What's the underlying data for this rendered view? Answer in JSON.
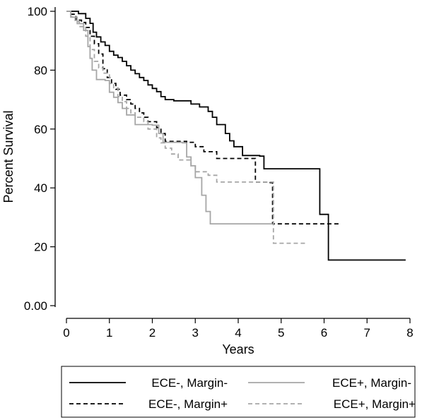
{
  "chart_data": {
    "type": "line",
    "step": true,
    "xlabel": "Years",
    "ylabel": "Percent Survival",
    "xlim": [
      0,
      8
    ],
    "ylim": [
      0,
      100
    ],
    "x_ticks": [
      0,
      1,
      2,
      3,
      4,
      5,
      6,
      7,
      8
    ],
    "x_tick_labels": [
      "0",
      "1",
      "2",
      "3",
      "4",
      "5",
      "6",
      "7",
      "8"
    ],
    "y_ticks": [
      0,
      20,
      40,
      60,
      80,
      100
    ],
    "y_tick_labels": [
      "0.00",
      "20",
      "40",
      "60",
      "80",
      "100"
    ],
    "grid": false,
    "legend_position": "bottom",
    "series": [
      {
        "name": "ECE-, Margin-",
        "color": "#000000",
        "dash": "solid",
        "points": [
          [
            0,
            100
          ],
          [
            0.2,
            100
          ],
          [
            0.28,
            99.2
          ],
          [
            0.38,
            99.2
          ],
          [
            0.45,
            97.6
          ],
          [
            0.55,
            95.9
          ],
          [
            0.62,
            92.9
          ],
          [
            0.7,
            91.3
          ],
          [
            0.8,
            89.6
          ],
          [
            0.9,
            88.4
          ],
          [
            1.0,
            86.4
          ],
          [
            1.1,
            85.1
          ],
          [
            1.2,
            84.3
          ],
          [
            1.3,
            83.0
          ],
          [
            1.4,
            81.5
          ],
          [
            1.5,
            80.0
          ],
          [
            1.6,
            78.8
          ],
          [
            1.7,
            77.5
          ],
          [
            1.8,
            76.5
          ],
          [
            1.9,
            75.0
          ],
          [
            2.0,
            73.8
          ],
          [
            2.1,
            72.7
          ],
          [
            2.2,
            71.0
          ],
          [
            2.3,
            70.0
          ],
          [
            2.5,
            69.6
          ],
          [
            2.9,
            68.5
          ],
          [
            3.1,
            67.5
          ],
          [
            3.3,
            66.0
          ],
          [
            3.4,
            64.0
          ],
          [
            3.5,
            61.5
          ],
          [
            3.7,
            58.5
          ],
          [
            3.8,
            56.0
          ],
          [
            3.9,
            54.0
          ],
          [
            4.1,
            51.0
          ],
          [
            4.5,
            50.8
          ],
          [
            4.6,
            46.5
          ],
          [
            5.9,
            31.0
          ],
          [
            6.1,
            15.5
          ],
          [
            7.9,
            15.5
          ]
        ]
      },
      {
        "name": "ECE-, Margin+",
        "color": "#000000",
        "dash": "dashed",
        "points": [
          [
            0,
            100
          ],
          [
            0.1,
            99
          ],
          [
            0.22,
            97
          ],
          [
            0.35,
            96.2
          ],
          [
            0.45,
            94.5
          ],
          [
            0.55,
            91.5
          ],
          [
            0.65,
            89
          ],
          [
            0.75,
            85.5
          ],
          [
            0.85,
            80.5
          ],
          [
            0.95,
            77.5
          ],
          [
            1.05,
            75.5
          ],
          [
            1.15,
            73.5
          ],
          [
            1.25,
            71.5
          ],
          [
            1.4,
            70.0
          ],
          [
            1.5,
            68.5
          ],
          [
            1.6,
            67.0
          ],
          [
            1.7,
            65.5
          ],
          [
            1.8,
            64.0
          ],
          [
            1.9,
            62.5
          ],
          [
            2.1,
            60.5
          ],
          [
            2.2,
            58.5
          ],
          [
            2.3,
            55.8
          ],
          [
            2.8,
            55.5
          ],
          [
            3.0,
            54.0
          ],
          [
            3.2,
            52.3
          ],
          [
            3.5,
            50.0
          ],
          [
            4.4,
            42.0
          ],
          [
            4.7,
            41.8
          ],
          [
            4.8,
            27.8
          ],
          [
            6.4,
            27.8
          ]
        ]
      },
      {
        "name": "ECE+, Margin-",
        "color": "#a6a6a6",
        "dash": "solid",
        "points": [
          [
            0,
            100
          ],
          [
            0.1,
            98
          ],
          [
            0.25,
            95.8
          ],
          [
            0.4,
            93.5
          ],
          [
            0.5,
            88
          ],
          [
            0.55,
            84
          ],
          [
            0.6,
            80
          ],
          [
            0.7,
            76.8
          ],
          [
            0.9,
            76.5
          ],
          [
            1.0,
            72.5
          ],
          [
            1.1,
            70.8
          ],
          [
            1.2,
            69
          ],
          [
            1.3,
            67
          ],
          [
            1.4,
            64.8
          ],
          [
            1.6,
            61.5
          ],
          [
            2.0,
            61.3
          ],
          [
            2.15,
            58.5
          ],
          [
            2.25,
            55.5
          ],
          [
            2.7,
            55.3
          ],
          [
            2.8,
            50.5
          ],
          [
            2.9,
            47.5
          ],
          [
            3.0,
            43.5
          ],
          [
            3.15,
            37.5
          ],
          [
            3.25,
            32
          ],
          [
            3.35,
            27.8
          ],
          [
            4.8,
            27.8
          ]
        ]
      },
      {
        "name": "ECE+, Margin+",
        "color": "#a6a6a6",
        "dash": "dashed",
        "points": [
          [
            0,
            100
          ],
          [
            0.1,
            98.2
          ],
          [
            0.2,
            96.5
          ],
          [
            0.3,
            94.8
          ],
          [
            0.45,
            91.5
          ],
          [
            0.55,
            87
          ],
          [
            0.65,
            83
          ],
          [
            0.75,
            80.8
          ],
          [
            0.85,
            79
          ],
          [
            1.0,
            75.5
          ],
          [
            1.1,
            74.0
          ],
          [
            1.2,
            71.0
          ],
          [
            1.3,
            69.3
          ],
          [
            1.4,
            67.0
          ],
          [
            1.5,
            65.5
          ],
          [
            1.6,
            64.0
          ],
          [
            1.8,
            62.5
          ],
          [
            1.9,
            60
          ],
          [
            2.1,
            57
          ],
          [
            2.2,
            55.3
          ],
          [
            2.3,
            53.5
          ],
          [
            2.45,
            51.5
          ],
          [
            2.6,
            49.5
          ],
          [
            2.9,
            47.5
          ],
          [
            3.0,
            45.5
          ],
          [
            3.3,
            44.3
          ],
          [
            3.5,
            42.0
          ],
          [
            4.8,
            42.0
          ],
          [
            4.82,
            21.2
          ],
          [
            5.6,
            21.2
          ]
        ]
      }
    ]
  }
}
